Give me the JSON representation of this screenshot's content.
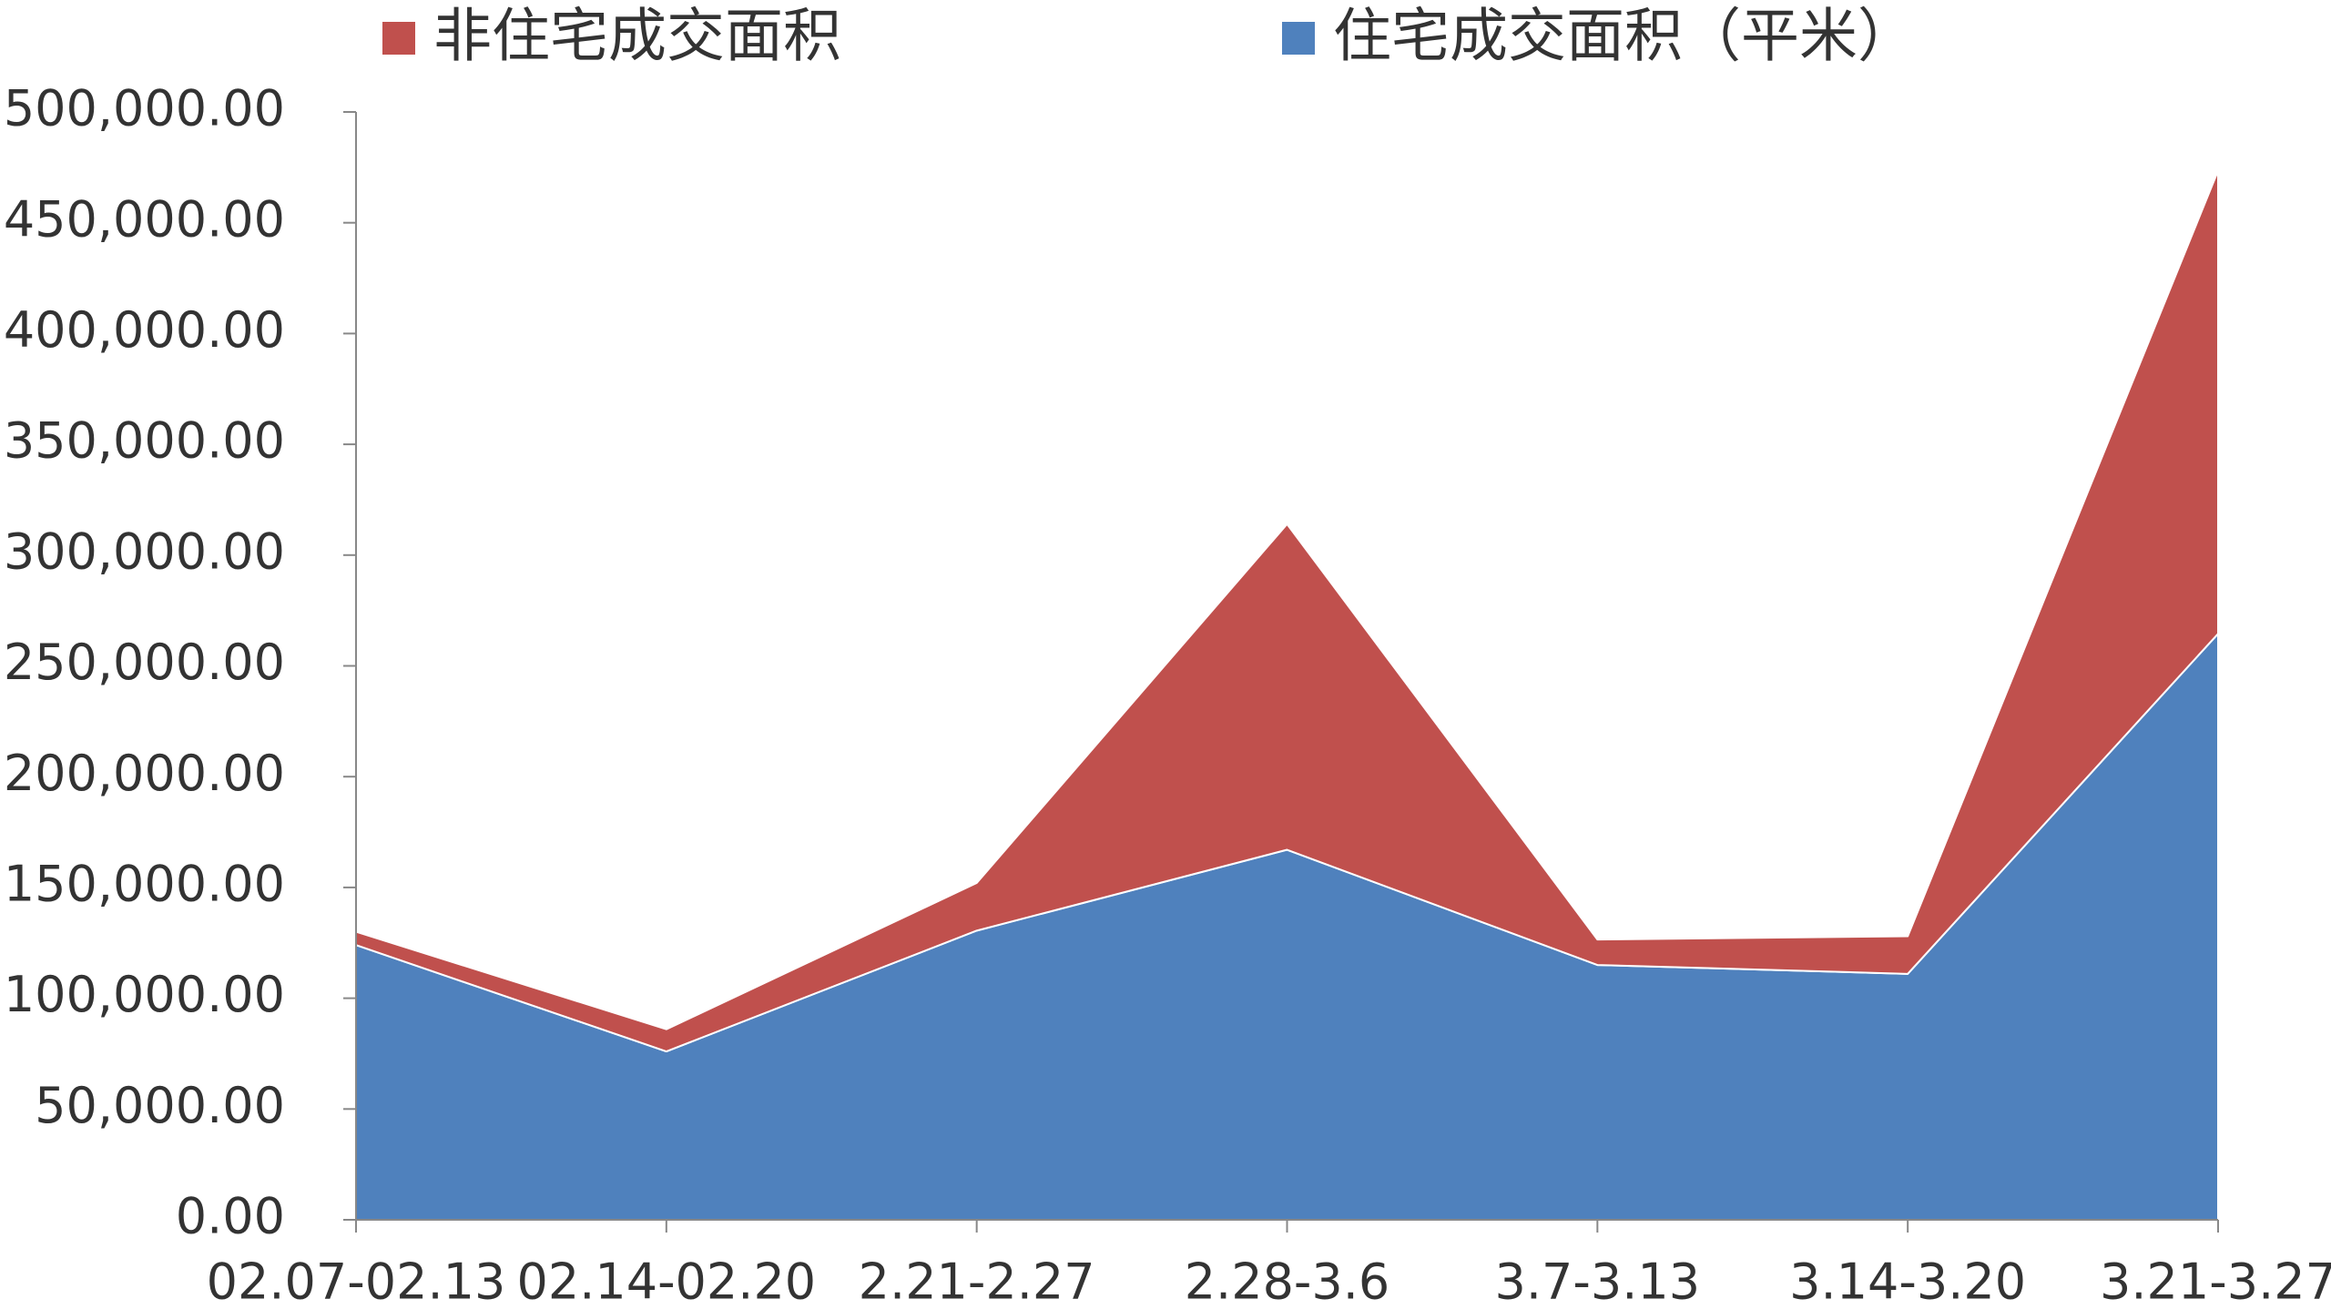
{
  "chart_data": {
    "type": "stacked_area",
    "categories": [
      "02.07-02.13",
      "02.14-02.20",
      "2.21-2.27",
      "2.28-3.6",
      "3.7-3.13",
      "3.14-3.20",
      "3.21-3.27"
    ],
    "series": [
      {
        "name": "非住宅成交面积",
        "color": "#c0504d",
        "values": [
          6000,
          10000,
          21500,
          147000,
          11500,
          17000,
          209000
        ]
      },
      {
        "name": "住宅成交面积（平米）",
        "color": "#4f81bd",
        "values": [
          124000,
          76000,
          130500,
          167000,
          115000,
          111000,
          264500
        ]
      }
    ],
    "ylim": [
      0,
      500000
    ],
    "yticks": [
      {
        "value": 0,
        "label": "0.00"
      },
      {
        "value": 50000,
        "label": "50,000.00"
      },
      {
        "value": 100000,
        "label": "100,000.00"
      },
      {
        "value": 150000,
        "label": "150,000.00"
      },
      {
        "value": 200000,
        "label": "200,000.00"
      },
      {
        "value": 250000,
        "label": "250,000.00"
      },
      {
        "value": 300000,
        "label": "300,000.00"
      },
      {
        "value": 350000,
        "label": "350,000.00"
      },
      {
        "value": 400000,
        "label": "400,000.00"
      },
      {
        "value": 450000,
        "label": "450,000.00"
      },
      {
        "value": 500000,
        "label": "500,000.00"
      }
    ],
    "legend": "top"
  }
}
